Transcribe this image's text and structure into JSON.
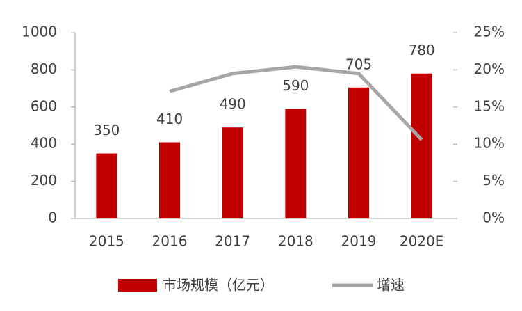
{
  "chart_data": {
    "type": "bar_line",
    "categories": [
      "2015",
      "2016",
      "2017",
      "2018",
      "2019",
      "2020E"
    ],
    "series": [
      {
        "name": "市场规模（亿元）",
        "color": "#c00000",
        "values": [
          350,
          410,
          490,
          590,
          705,
          780
        ]
      },
      {
        "name": "增速",
        "color": "#a6a6a6",
        "axis": "y2",
        "values": [
          null,
          17.1,
          19.5,
          20.4,
          19.5,
          10.6
        ]
      }
    ],
    "ylim": [
      0,
      1000
    ],
    "yticks": [
      0,
      200,
      400,
      600,
      800,
      1000
    ],
    "y2lim": [
      0,
      25
    ],
    "y2ticks": [
      {
        "value": 0,
        "label": "0%"
      },
      {
        "value": 5,
        "label": "5%"
      },
      {
        "value": 10,
        "label": "10%"
      },
      {
        "value": 15,
        "label": "15%"
      },
      {
        "value": 20,
        "label": "20%"
      },
      {
        "value": 25,
        "label": "25%"
      }
    ],
    "legend": "bottom"
  }
}
